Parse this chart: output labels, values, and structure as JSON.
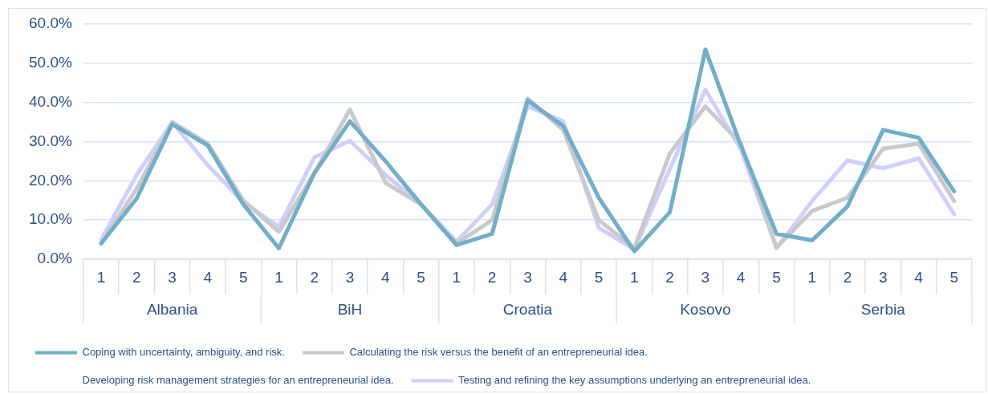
{
  "chart_data": {
    "type": "line",
    "categories": [
      "1",
      "2",
      "3",
      "4",
      "5",
      "1",
      "2",
      "3",
      "4",
      "5",
      "1",
      "2",
      "3",
      "4",
      "5",
      "1",
      "2",
      "3",
      "4",
      "5",
      "1",
      "2",
      "3",
      "4",
      "5"
    ],
    "annotations": [
      "Albania",
      "BiH",
      "Croatia",
      "Kosovo",
      "Serbia"
    ],
    "series": [
      {
        "name": "Coping with uncertainty, ambiguity, and risk.",
        "color": "#70aec9",
        "values": [
          4,
          15.5,
          34.5,
          29,
          14,
          2.8,
          22,
          35.2,
          25,
          14,
          3.6,
          6.5,
          40.5,
          34,
          15.7,
          2,
          12,
          53.5,
          29,
          6.5,
          4.8,
          13.5,
          33,
          31,
          17.3
        ]
      },
      {
        "name": "Calculating the risk versus the benefit of an entrepreneurial idea.",
        "color": "#c9c9c9",
        "values": [
          4,
          18,
          35,
          29.5,
          15,
          7,
          22,
          38.2,
          19.5,
          14,
          4,
          10,
          41,
          33,
          10,
          2.8,
          27,
          39,
          29.5,
          3,
          12.3,
          15.7,
          28.2,
          29.5,
          14.8
        ]
      },
      {
        "name": "Developing risk management strategies for an entrepreneurial idea.",
        "values": [
          null,
          null,
          null,
          null,
          null,
          null,
          null,
          null,
          null,
          null,
          null,
          null,
          null,
          null,
          null,
          null,
          null,
          null,
          null,
          null,
          null,
          null,
          null,
          null,
          null
        ]
      },
      {
        "name": "Testing and refining the key assumptions underlying an entrepreneurial idea.",
        "color": "#cfcfff",
        "values": [
          5,
          21.5,
          35,
          24,
          14.5,
          8.3,
          26,
          30.2,
          21.5,
          14,
          4.5,
          14,
          39,
          35.2,
          8,
          2.5,
          23,
          43.2,
          28,
          2.8,
          14.8,
          25.2,
          23.2,
          25.7,
          11.5
        ]
      }
    ],
    "ylim": [
      0,
      60
    ],
    "yticks": [
      {
        "value": 0,
        "label": "0.0%"
      },
      {
        "value": 10,
        "label": "10.0%"
      },
      {
        "value": 20,
        "label": "20.0%"
      },
      {
        "value": 30,
        "label": "30.0%"
      },
      {
        "value": 40,
        "label": "40.0%"
      },
      {
        "value": 50,
        "label": "50.0%"
      },
      {
        "value": 60,
        "label": "60.0%"
      }
    ],
    "grid": "y",
    "legend": "bottom",
    "marker": "none",
    "line_style": "solid"
  }
}
